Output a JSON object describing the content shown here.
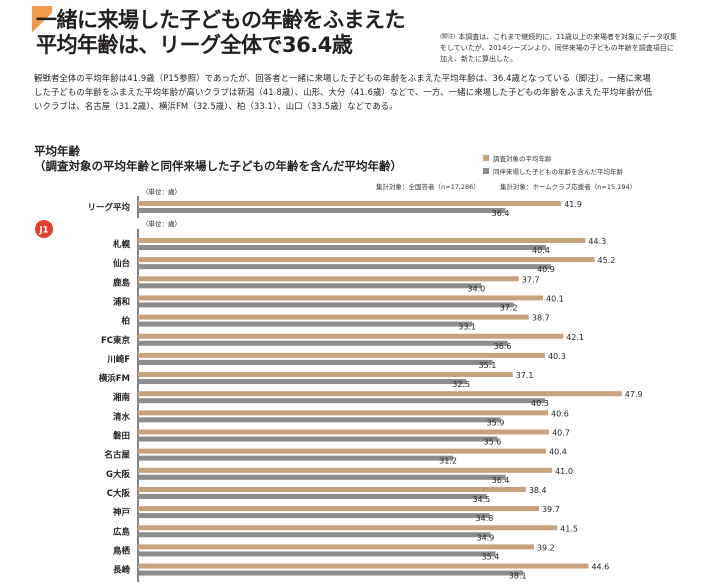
{
  "header": {
    "title_line1": "一緒に来場した子どもの年齢をふまえた",
    "title_line2": "平均年齢は、リーグ全体で36.4歳",
    "note_tag": "(脚注)",
    "note": "本調査は、これまで継続的に、11歳以上の来場者を対象にデータ収集をしていたが、2014シーズンより、同伴来場の子どもの年齢を調査項目に加え、新たに算出した。",
    "lead": "観戦者全体の平均年齢は41.9歳（P15参照）であったが、回答者と一緒に来場した子どもの年齢をふまえた平均年齢は、36.4歳となっている（脚注）。一緒に来場した子どもの年齢をふまえた平均年齢が高いクラブは新潟（41.8歳）、山形、大分（41.6歳）などで、一方、一緒に来場した子どもの年齢をふまえた平均年齢が低いクラブは、名古屋（31.2歳）、横浜FM（32.5歳）、柏（33.1）、山口（33.5歳）などである。"
  },
  "chart_meta": {
    "section_title": "平均年齢",
    "section_subtitle": "（調査対象の平均年齢と同伴来場した子どもの年齢を含んだ平均年齢）",
    "unit_label": "（単位：歳）",
    "sample_left": "集計対象：全国答者（n=17,286）",
    "sample_right": "集計対象：ホームクラブ応援者（n=15,194）",
    "league_badge": "J1",
    "colors": {
      "survey": "#c8a27c",
      "with_children": "#8c8c8c",
      "axis": "#333333",
      "badge": "#e0402e"
    }
  },
  "chart_data": {
    "type": "bar",
    "orientation": "horizontal",
    "title": "平均年齢",
    "subtitle": "（調査対象の平均年齢と同伴来場した子どもの年齢を含んだ平均年齢）",
    "legend": [
      "調査対象の平均年齢",
      "同伴来場した子どもの年齢を含んだ平均年齢"
    ],
    "legend_position": "top-right",
    "xlim": [
      0,
      48
    ],
    "overall": {
      "label": "リーグ平均",
      "values": [
        41.9,
        36.4
      ]
    },
    "categories": [
      "札幌",
      "仙台",
      "鹿島",
      "浦和",
      "柏",
      "FC東京",
      "川崎F",
      "横浜FM",
      "湘南",
      "清水",
      "磐田",
      "名古屋",
      "G大阪",
      "C大阪",
      "神戸",
      "広島",
      "鳥栖",
      "長崎"
    ],
    "series": [
      {
        "name": "調査対象の平均年齢",
        "values": [
          44.3,
          45.2,
          37.7,
          40.1,
          38.7,
          42.1,
          40.3,
          37.1,
          47.9,
          40.6,
          40.7,
          40.4,
          41.0,
          38.4,
          39.7,
          41.5,
          39.2,
          44.6
        ]
      },
      {
        "name": "同伴来場した子どもの年齢を含んだ平均年齢",
        "values": [
          40.4,
          40.9,
          34.0,
          37.2,
          33.1,
          36.6,
          35.1,
          32.5,
          40.3,
          35.9,
          35.6,
          31.2,
          36.4,
          34.5,
          34.8,
          34.9,
          35.4,
          38.1
        ]
      }
    ]
  }
}
